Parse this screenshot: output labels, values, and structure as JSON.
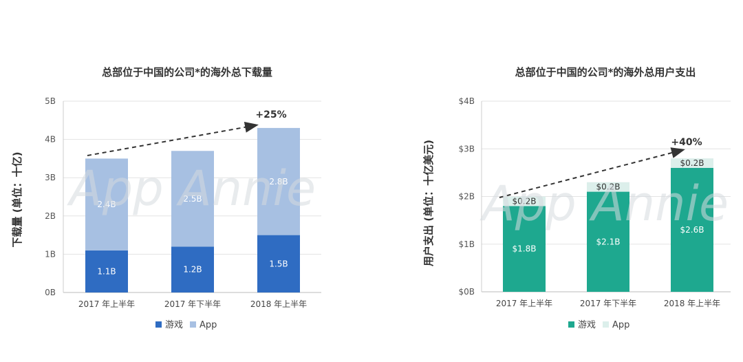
{
  "watermark": "App Annie",
  "chart_data": [
    {
      "type": "bar",
      "stacked": true,
      "title": "总部位于中国的公司*的海外总下载量",
      "ylabel": "下载量 (单位：十亿)",
      "categories": [
        "2017 年上半年",
        "2017 年下半年",
        "2018 年上半年"
      ],
      "ylim": [
        0,
        5
      ],
      "ytick_labels": [
        "0B",
        "1B",
        "2B",
        "3B",
        "4B",
        "5B"
      ],
      "grid": true,
      "legend": "bottom",
      "growth_label": "+25%",
      "series": [
        {
          "name": "游戏",
          "values": [
            1.1,
            1.2,
            1.5
          ],
          "labels": [
            "1.1B",
            "1.2B",
            "1.5B"
          ],
          "color": "#2f6cc2"
        },
        {
          "name": "App",
          "values": [
            2.4,
            2.5,
            2.8
          ],
          "labels": [
            "2.4B",
            "2.5B",
            "2.8B"
          ],
          "color": "#a7c0e2"
        }
      ]
    },
    {
      "type": "bar",
      "stacked": true,
      "title": "总部位于中国的公司*的海外总用户支出",
      "ylabel": "用户支出 (单位：十亿美元)",
      "categories": [
        "2017 年上半年",
        "2017 年下半年",
        "2018 年上半年"
      ],
      "ylim": [
        0,
        4
      ],
      "ytick_labels": [
        "$0B",
        "$1B",
        "$2B",
        "$3B",
        "$4B"
      ],
      "grid": true,
      "legend": "bottom",
      "growth_label": "+40%",
      "series": [
        {
          "name": "游戏",
          "values": [
            1.8,
            2.1,
            2.6
          ],
          "labels": [
            "$1.8B",
            "$2.1B",
            "$2.6B"
          ],
          "color": "#1ea88f"
        },
        {
          "name": "App",
          "values": [
            0.2,
            0.2,
            0.2
          ],
          "labels": [
            "$0.2B",
            "$0.2B",
            "$0.2B"
          ],
          "color": "#dcefeb"
        }
      ]
    }
  ]
}
